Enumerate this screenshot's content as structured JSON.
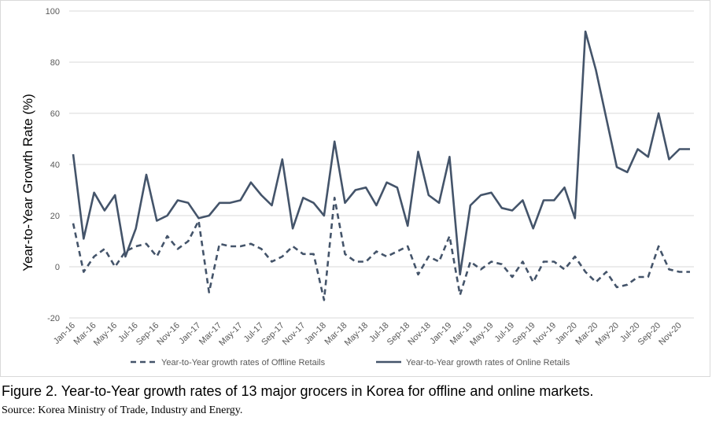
{
  "chart_data": {
    "type": "line",
    "ylabel": "Year-to-Year Growth Rate (%)",
    "ylim": [
      -20,
      100
    ],
    "yticks": [
      -20,
      0,
      20,
      40,
      60,
      80,
      100
    ],
    "grid": true,
    "legend_position": "bottom",
    "x": [
      "Jan-16",
      "Feb-16",
      "Mar-16",
      "Apr-16",
      "May-16",
      "Jun-16",
      "Jul-16",
      "Aug-16",
      "Sep-16",
      "Oct-16",
      "Nov-16",
      "Dec-16",
      "Jan-17",
      "Feb-17",
      "Mar-17",
      "Apr-17",
      "May-17",
      "Jun-17",
      "Jul-17",
      "Aug-17",
      "Sep-17",
      "Oct-17",
      "Nov-17",
      "Dec-17",
      "Jan-18",
      "Feb-18",
      "Mar-18",
      "Apr-18",
      "May-18",
      "Jun-18",
      "Jul-18",
      "Aug-18",
      "Sep-18",
      "Oct-18",
      "Nov-18",
      "Dec-18",
      "Jan-19",
      "Feb-19",
      "Mar-19",
      "Apr-19",
      "May-19",
      "Jun-19",
      "Jul-19",
      "Aug-19",
      "Sep-19",
      "Oct-19",
      "Nov-19",
      "Dec-19",
      "Jan-20",
      "Feb-20",
      "Mar-20",
      "Apr-20",
      "May-20",
      "Jun-20",
      "Jul-20",
      "Aug-20",
      "Sep-20",
      "Oct-20",
      "Nov-20",
      "Dec-20"
    ],
    "xtick_labels": [
      "Jan-16",
      "Mar-16",
      "May-16",
      "Jul-16",
      "Sep-16",
      "Nov-16",
      "Jan-17",
      "Mar-17",
      "May-17",
      "Jul-17",
      "Sep-17",
      "Nov-17",
      "Jan-18",
      "Mar-18",
      "May-18",
      "Jul-18",
      "Sep-18",
      "Nov-18",
      "Jan-19",
      "Mar-19",
      "May-19",
      "Jul-19",
      "Sep-19",
      "Nov-19",
      "Jan-20",
      "Mar-20",
      "May-20",
      "Jul-20",
      "Sep-20",
      "Nov-20"
    ],
    "series": [
      {
        "name": "Year-to-Year growth rates of Offline Retails",
        "style": "dashed",
        "color": "#44546a",
        "values": [
          17,
          -2,
          4,
          7,
          0,
          6,
          8,
          9,
          4,
          12,
          7,
          10,
          18,
          -10,
          9,
          8,
          8,
          9,
          7,
          2,
          4,
          8,
          5,
          5,
          -13,
          27,
          5,
          2,
          2,
          6,
          4,
          6,
          8,
          -3,
          4,
          2,
          12,
          -11,
          2,
          -1,
          2,
          1,
          -4,
          2,
          -6,
          2,
          2,
          -1,
          4,
          -2,
          -6,
          -2,
          -8,
          -7,
          -4,
          -4,
          8,
          -1,
          -2,
          -2
        ]
      },
      {
        "name": "Year-to-Year growth rates of Online Retails",
        "style": "solid",
        "color": "#44546a",
        "values": [
          44,
          11,
          29,
          22,
          28,
          4,
          15,
          36,
          18,
          20,
          26,
          25,
          19,
          20,
          25,
          25,
          26,
          33,
          28,
          24,
          42,
          15,
          27,
          25,
          20,
          49,
          25,
          30,
          31,
          24,
          33,
          31,
          16,
          45,
          28,
          25,
          43,
          -3,
          24,
          28,
          29,
          23,
          22,
          26,
          15,
          26,
          26,
          31,
          19,
          92,
          77,
          58,
          39,
          37,
          46,
          43,
          60,
          42,
          46,
          46
        ]
      }
    ]
  },
  "caption": "Figure 2. Year-to-Year growth rates of 13 major grocers in Korea for offline and online markets.",
  "source": "Source: Korea Ministry of Trade, Industry and Energy."
}
